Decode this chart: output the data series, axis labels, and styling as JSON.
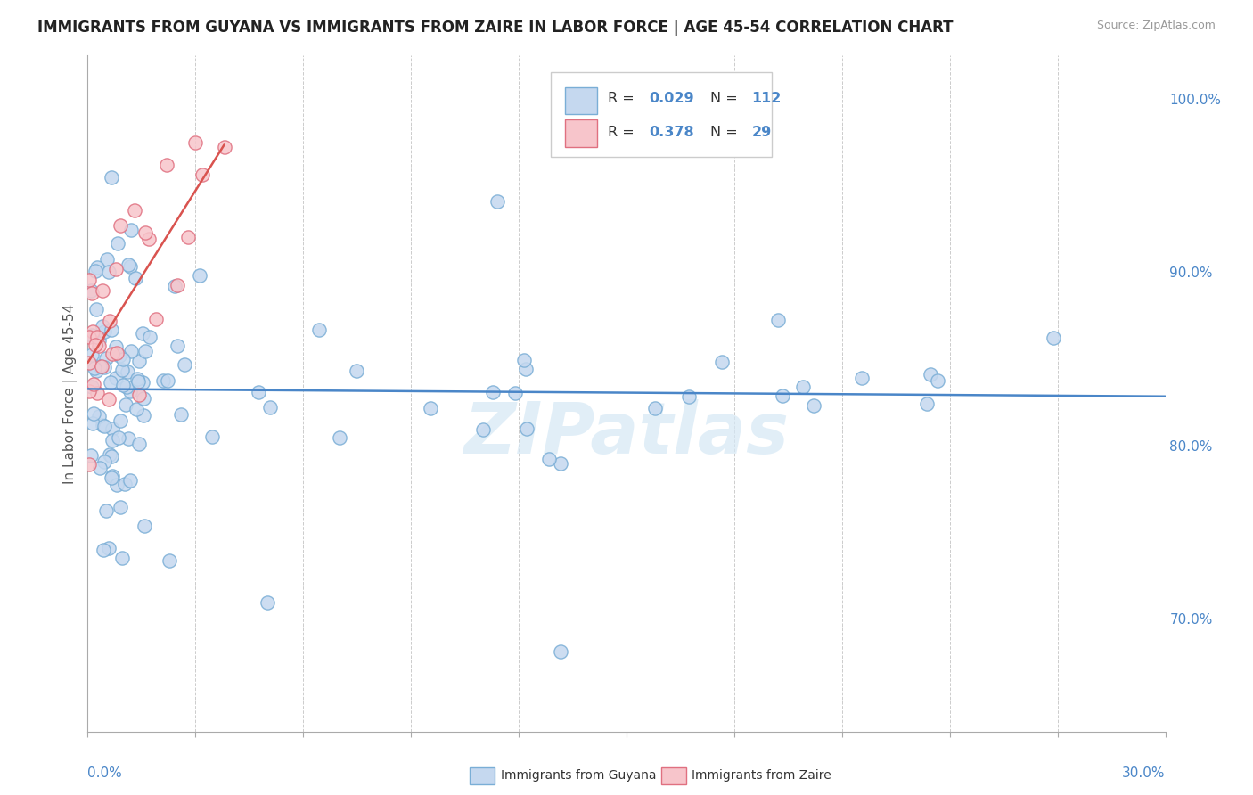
{
  "title": "IMMIGRANTS FROM GUYANA VS IMMIGRANTS FROM ZAIRE IN LABOR FORCE | AGE 45-54 CORRELATION CHART",
  "source": "Source: ZipAtlas.com",
  "ylabel": "In Labor Force | Age 45-54",
  "xlim": [
    0.0,
    0.3
  ],
  "ylim": [
    0.635,
    1.025
  ],
  "y_tick_vals": [
    0.7,
    0.8,
    0.9,
    1.0
  ],
  "y_tick_labels": [
    "70.0%",
    "80.0%",
    "90.0%",
    "100.0%"
  ],
  "color_guyana_fill": "#c5d8ef",
  "color_guyana_edge": "#7aaed6",
  "color_zaire_fill": "#f7c5cb",
  "color_zaire_edge": "#e07080",
  "color_line_guyana": "#4a86c8",
  "color_line_zaire": "#d9534f",
  "color_text_blue": "#4a86c8",
  "color_grid": "#cccccc",
  "background_color": "#ffffff",
  "watermark": "ZIPatlas",
  "watermark_color": "#d5e8f5",
  "title_fontsize": 12,
  "source_fontsize": 9,
  "tick_fontsize": 11,
  "ylabel_fontsize": 11
}
